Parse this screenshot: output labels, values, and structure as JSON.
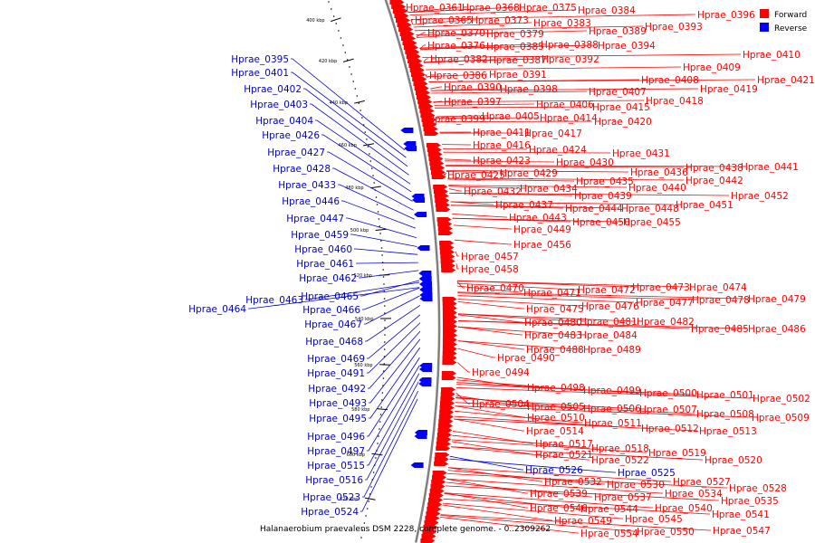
{
  "caption": "Halanaerobium praevalens DSM 2228, complete genome. - 0..2309262",
  "legend": [
    {
      "label": "Forward",
      "color": "#ff0000"
    },
    {
      "label": "Reverse",
      "color": "#0000ff"
    }
  ],
  "ticks": [
    "400 kbp",
    "420 kbp",
    "440 kbp",
    "460 kbp",
    "480 kbp",
    "500 kbp",
    "520 kbp",
    "540 kbp",
    "560 kbp",
    "580 kbp",
    "600 kbp",
    "620 kbp"
  ],
  "forward_labels": [
    "Hprae_0361",
    "Hprae_0368",
    "Hprae_0375",
    "Hprae_0384",
    "Hprae_0396",
    "Hprae_0365",
    "Hprae_0373",
    "Hprae_0383",
    "Hprae_0393",
    "Hprae_0370",
    "Hprae_0379",
    "Hprae_0389",
    "Hprae_0376",
    "Hprae_0385",
    "Hprae_0388",
    "Hprae_0394",
    "Hprae_0382",
    "Hprae_0387",
    "Hprae_0392",
    "Hprae_0410",
    "Hprae_0409",
    "Hprae_0386",
    "Hprae_0391",
    "Hprae_0408",
    "Hprae_0421",
    "Hprae_0390",
    "Hprae_0398",
    "Hprae_0407",
    "Hprae_0419",
    "Hprae_0397",
    "Hprae_0406",
    "Hprae_0418",
    "Hprae_0415",
    "Hprae_0405",
    "Hprae_0414",
    "Hprae_0399",
    "Hprae_0420",
    "Hprae_0411",
    "Hprae_0417",
    "Hprae_0416",
    "Hprae_0424",
    "Hprae_0431",
    "Hprae_0423",
    "Hprae_0430",
    "Hprae_0438",
    "Hprae_0441",
    "Hprae_0436",
    "Hprae_0425",
    "Hprae_0429",
    "Hprae_0442",
    "Hprae_0435",
    "Hprae_0440",
    "Hprae_0434",
    "Hprae_0432",
    "Hprae_0452",
    "Hprae_0439",
    "Hprae_0437",
    "Hprae_0444",
    "Hprae_0448",
    "Hprae_0451",
    "Hprae_0443",
    "Hprae_0449",
    "Hprae_0450",
    "Hprae_0455",
    "Hprae_0456",
    "Hprae_0457",
    "Hprae_0458",
    "Hprae_0470",
    "Hprae_0473",
    "Hprae_0474",
    "Hprae_0471",
    "Hprae_0472",
    "Hprae_0479",
    "Hprae_0477",
    "Hprae_0478",
    "Hprae_0475",
    "Hprae_0476",
    "Hprae_0482",
    "Hprae_0480",
    "Hprae_0481",
    "Hprae_0485",
    "Hprae_0486",
    "Hprae_0483",
    "Hprae_0484",
    "Hprae_0488",
    "Hprae_0489",
    "Hprae_0490",
    "Hprae_0494",
    "Hprae_0498",
    "Hprae_0499",
    "Hprae_0500",
    "Hprae_0501",
    "Hprae_0502",
    "Hprae_0504",
    "Hprae_0505",
    "Hprae_0506",
    "Hprae_0507",
    "Hprae_0508",
    "Hprae_0509",
    "Hprae_0510",
    "Hprae_0511",
    "Hprae_0512",
    "Hprae_0513",
    "Hprae_0514",
    "Hprae_0517",
    "Hprae_0518",
    "Hprae_0519",
    "Hprae_0521",
    "Hprae_0522",
    "Hprae_0520",
    "Hprae_0532",
    "Hprae_0530",
    "Hprae_0527",
    "Hprae_0528",
    "Hprae_0539",
    "Hprae_0537",
    "Hprae_0534",
    "Hprae_0535",
    "Hprae_0546",
    "Hprae_0544",
    "Hprae_0540",
    "Hprae_0541",
    "Hprae_0549",
    "Hprae_0545",
    "Hprae_0554",
    "Hprae_0550",
    "Hprae_0547"
  ],
  "reverse_labels": [
    "Hprae_0395",
    "Hprae_0401",
    "Hprae_0402",
    "Hprae_0403",
    "Hprae_0404",
    "Hprae_0426",
    "Hprae_0427",
    "Hprae_0428",
    "Hprae_0433",
    "Hprae_0446",
    "Hprae_0447",
    "Hprae_0459",
    "Hprae_0460",
    "Hprae_0461",
    "Hprae_0462",
    "Hprae_0463",
    "Hprae_0465",
    "Hprae_0464",
    "Hprae_0466",
    "Hprae_0467",
    "Hprae_0468",
    "Hprae_0469",
    "Hprae_0491",
    "Hprae_0492",
    "Hprae_0493",
    "Hprae_0495",
    "Hprae_0496",
    "Hprae_0497",
    "Hprae_0515",
    "Hprae_0516",
    "Hprae_0523",
    "Hprae_0524"
  ],
  "reverse_right_labels": [
    "Hprae_0526",
    "Hprae_0525"
  ]
}
